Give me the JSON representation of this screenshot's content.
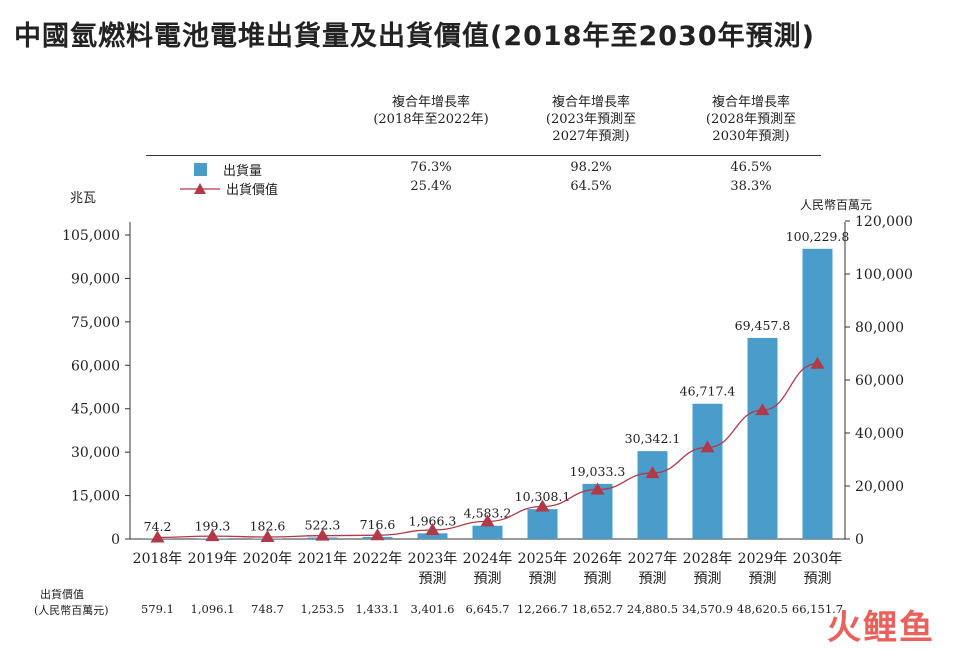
{
  "title": "中國氫燃料電池電堆出貨量及出貨價值(2018年至2030年預測)",
  "cagr_table": {
    "headers": [
      {
        "line1": "複合年增長率",
        "line2": "(2018年至2022年)",
        "line3": ""
      },
      {
        "line1": "複合年增長率",
        "line2": "(2023年預測至",
        "line3": "2027年預測)"
      },
      {
        "line1": "複合年增長率",
        "line2": "(2028年預測至",
        "line3": "2030年預測)"
      }
    ],
    "shipment_row": [
      "76.3%",
      "98.2%",
      "46.5%"
    ],
    "value_row": [
      "25.4%",
      "64.5%",
      "38.3%"
    ]
  },
  "legend": {
    "shipment": "出貨量",
    "value": "出貨價值"
  },
  "colors": {
    "bar": "#4a9ccb",
    "line": "#b23a48",
    "marker": "#b23a48"
  },
  "left_unit": "兆瓦",
  "right_unit": "人民幣百萬元",
  "bottom_label": {
    "line1": "出貨價值",
    "line2": "(人民幣百萬元)"
  },
  "watermark": "火鲤鱼",
  "chart_data": {
    "type": "bar",
    "categories": [
      [
        "2018年",
        ""
      ],
      [
        "2019年",
        ""
      ],
      [
        "2020年",
        ""
      ],
      [
        "2021年",
        ""
      ],
      [
        "2022年",
        ""
      ],
      [
        "2023年",
        "預測"
      ],
      [
        "2024年",
        "預測"
      ],
      [
        "2025年",
        "預測"
      ],
      [
        "2026年",
        "預測"
      ],
      [
        "2027年",
        "預測"
      ],
      [
        "2028年",
        "預測"
      ],
      [
        "2029年",
        "預測"
      ],
      [
        "2030年",
        "預測"
      ]
    ],
    "series": [
      {
        "name": "出貨量",
        "type": "bar",
        "axis": "left",
        "values": [
          74.2,
          199.3,
          182.6,
          522.3,
          716.6,
          1966.3,
          4583.2,
          10308.1,
          19033.3,
          30342.1,
          46717.4,
          69457.8,
          100229.8
        ],
        "labels": [
          "74.2",
          "199.3",
          "182.6",
          "522.3",
          "716.6",
          "1,966.3",
          "4,583.2",
          "10,308.1",
          "19,033.3",
          "30,342.1",
          "46,717.4",
          "69,457.8",
          "100,229.8"
        ]
      },
      {
        "name": "出貨價值",
        "type": "line",
        "axis": "right",
        "values": [
          579.1,
          1096.1,
          748.7,
          1253.5,
          1433.1,
          3401.6,
          6645.7,
          12266.7,
          18652.7,
          24880.5,
          34570.9,
          48620.5,
          66151.7
        ],
        "labels": [
          "579.1",
          "1,096.1",
          "748.7",
          "1,253.5",
          "1,433.1",
          "3,401.6",
          "6,645.7",
          "12,266.7",
          "18,652.7",
          "24,880.5",
          "34,570.9",
          "48,620.5",
          "66,151.7"
        ]
      }
    ],
    "y_left": {
      "ylim": [
        0,
        105000
      ],
      "ticks": [
        0,
        15000,
        30000,
        45000,
        60000,
        75000,
        90000,
        105000
      ],
      "tick_labels": [
        "0",
        "15,000",
        "30,000",
        "45,000",
        "60,000",
        "75,000",
        "90,000",
        "105,000"
      ]
    },
    "y_right": {
      "ylim": [
        0,
        120000
      ],
      "ticks": [
        0,
        20000,
        40000,
        60000,
        80000,
        100000,
        120000
      ],
      "tick_labels": [
        "0",
        "20,000",
        "40,000",
        "60,000",
        "80,000",
        "100,000",
        "120,000"
      ]
    },
    "grid": false,
    "legend_position": "top-left"
  }
}
